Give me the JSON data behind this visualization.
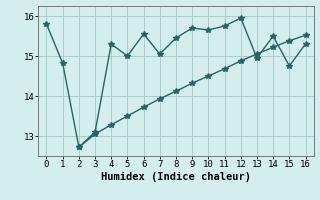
{
  "line1_x": [
    0,
    1,
    2,
    3,
    4,
    5,
    6,
    7,
    8,
    9,
    10,
    11,
    12,
    13,
    14,
    15,
    16
  ],
  "line1_y": [
    15.8,
    14.82,
    12.72,
    13.1,
    15.3,
    15.0,
    15.55,
    15.05,
    15.45,
    15.7,
    15.65,
    15.75,
    15.95,
    14.95,
    15.5,
    14.75,
    15.3
  ],
  "line2_x": [
    2,
    3,
    4,
    5,
    6,
    7,
    8,
    9,
    10,
    11,
    12,
    13,
    14,
    15,
    16
  ],
  "line2_y": [
    12.72,
    13.05,
    13.28,
    13.5,
    13.72,
    13.93,
    14.12,
    14.32,
    14.5,
    14.68,
    14.88,
    15.05,
    15.22,
    15.38,
    15.52
  ],
  "line_color": "#226666",
  "bg_color": "#d4eeee",
  "grid_color": "#aacccc",
  "xlabel": "Humidex (Indice chaleur)",
  "xlim": [
    -0.5,
    16.5
  ],
  "ylim": [
    12.5,
    16.25
  ],
  "yticks": [
    13,
    14,
    15,
    16
  ],
  "xticks": [
    0,
    1,
    2,
    3,
    4,
    5,
    6,
    7,
    8,
    9,
    10,
    11,
    12,
    13,
    14,
    15,
    16
  ],
  "marker": "*",
  "markersize": 4,
  "linewidth": 1.0,
  "xlabel_fontsize": 7.5,
  "tick_fontsize": 6.5
}
